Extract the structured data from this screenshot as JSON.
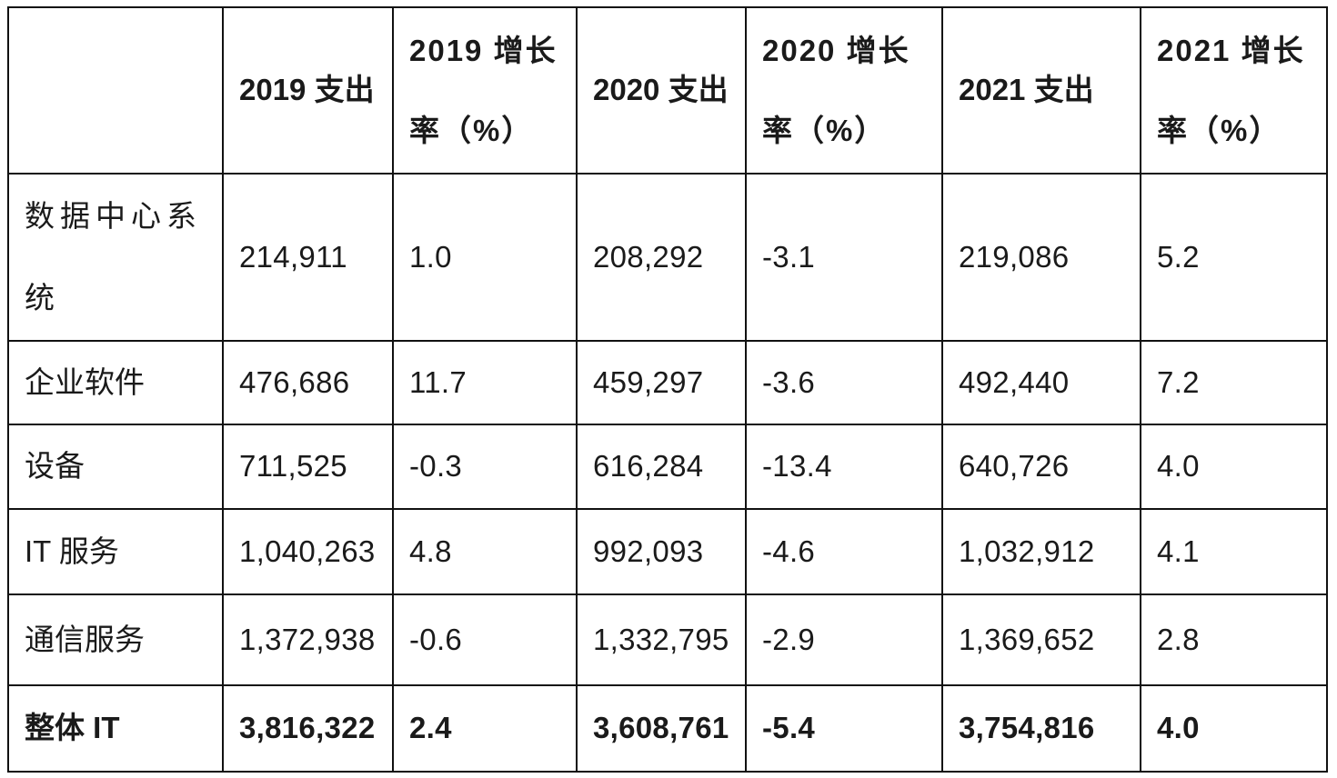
{
  "table": {
    "headers": [
      "",
      "2019 支出",
      "2019 增长率（%）",
      "2020 支出",
      "2020 增长率（%）",
      "2021 支出",
      "2021 增长率（%）"
    ],
    "rows": [
      [
        "数据中心系统",
        "214,911",
        "1.0",
        "208,292",
        "-3.1",
        "219,086",
        "5.2"
      ],
      [
        "企业软件",
        "476,686",
        "11.7",
        "459,297",
        "-3.6",
        "492,440",
        "7.2"
      ],
      [
        "设备",
        "711,525",
        "-0.3",
        "616,284",
        "-13.4",
        "640,726",
        "4.0"
      ],
      [
        "IT 服务",
        "1,040,263",
        "4.8",
        "992,093",
        "-4.6",
        "1,032,912",
        "4.1"
      ],
      [
        "通信服务",
        "1,372,938",
        "-0.6",
        "1,332,795",
        "-2.9",
        "1,369,652",
        "2.8"
      ],
      [
        "整体 IT",
        "3,816,322",
        "2.4",
        "3,608,761",
        "-5.4",
        "3,754,816",
        "4.0"
      ]
    ]
  }
}
